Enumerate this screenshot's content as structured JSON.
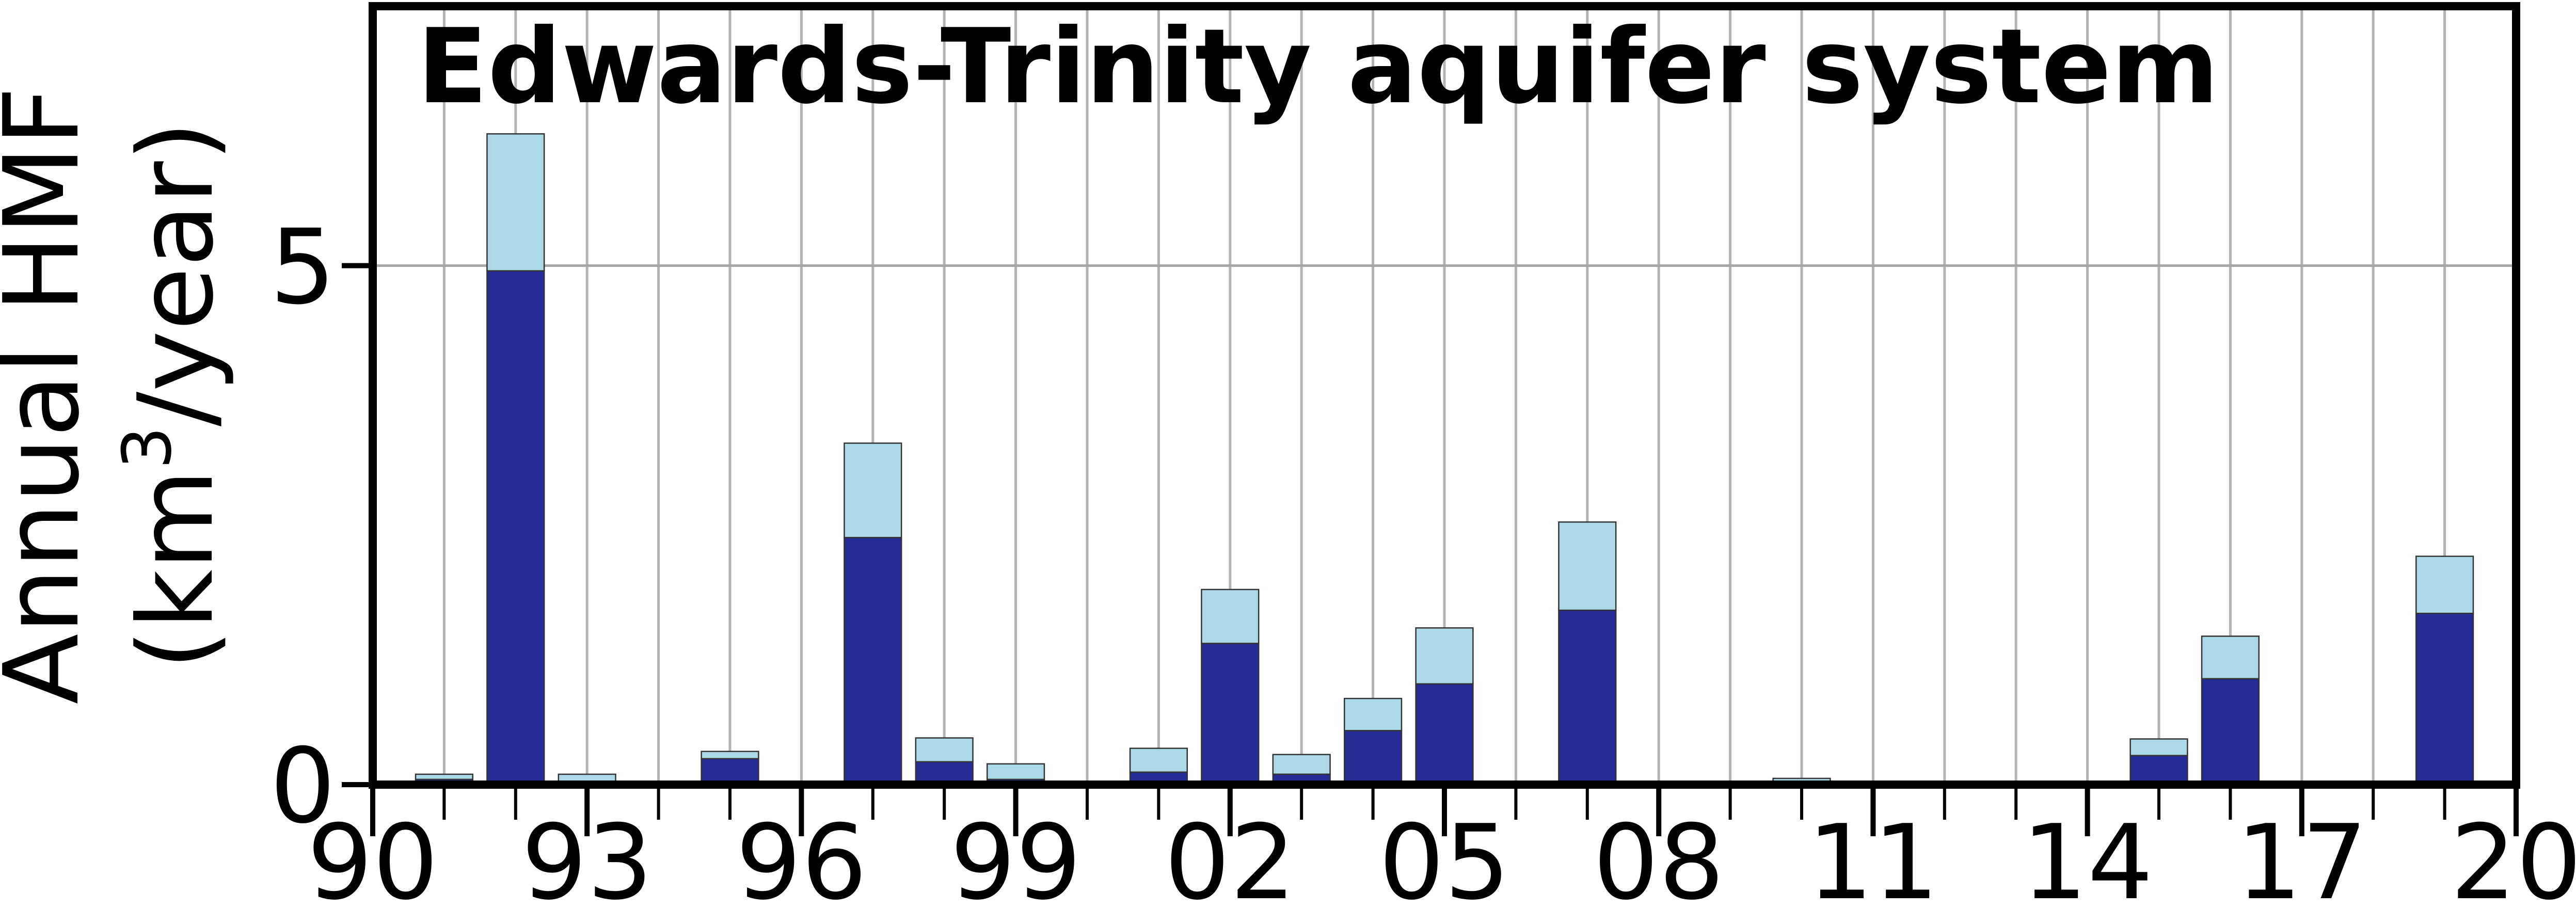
{
  "chart_data": {
    "type": "bar",
    "stacked": true,
    "title": "Edwards-Trinity aquifer system",
    "ylabel_line1": "Annual HMF",
    "ylabel_line2_pre": "(km",
    "ylabel_sup": "3",
    "ylabel_line2_post": "/year)",
    "xlim": [
      1990,
      2020
    ],
    "ylim": [
      0,
      7.5
    ],
    "grid": true,
    "x_tick_values": [
      1990,
      1993,
      1996,
      1999,
      2002,
      2005,
      2008,
      2011,
      2014,
      2017,
      2020
    ],
    "x_tick_labels": [
      "90",
      "93",
      "96",
      "99",
      "02",
      "05",
      "08",
      "11",
      "14",
      "17",
      "20"
    ],
    "y_tick_values": [
      0,
      5
    ],
    "y_tick_labels": [
      "0",
      "5"
    ],
    "categories": [
      1991,
      1992,
      1993,
      1994,
      1995,
      1996,
      1997,
      1998,
      1999,
      2000,
      2001,
      2002,
      2003,
      2004,
      2005,
      2006,
      2007,
      2008,
      2009,
      2010,
      2011,
      2012,
      2013,
      2014,
      2015,
      2016,
      2017,
      2018,
      2019
    ],
    "series": [
      {
        "color": "#262b96",
        "values": [
          0.05,
          4.95,
          0,
          0,
          0.25,
          0,
          2.38,
          0.22,
          0.05,
          0,
          0.12,
          1.36,
          0.1,
          0.52,
          0.97,
          0,
          1.68,
          0,
          0,
          0,
          0,
          0,
          0,
          0,
          0.28,
          1.02,
          0,
          0,
          1.65
        ]
      },
      {
        "color": "#add8e6",
        "values": [
          0.05,
          1.32,
          0.1,
          0,
          0.07,
          0.03,
          0.91,
          0.23,
          0.15,
          0,
          0.23,
          0.52,
          0.19,
          0.31,
          0.54,
          0,
          0.85,
          0,
          0,
          0.06,
          0,
          0,
          0,
          0,
          0.16,
          0.41,
          0.02,
          0.02,
          0.55
        ]
      }
    ]
  }
}
